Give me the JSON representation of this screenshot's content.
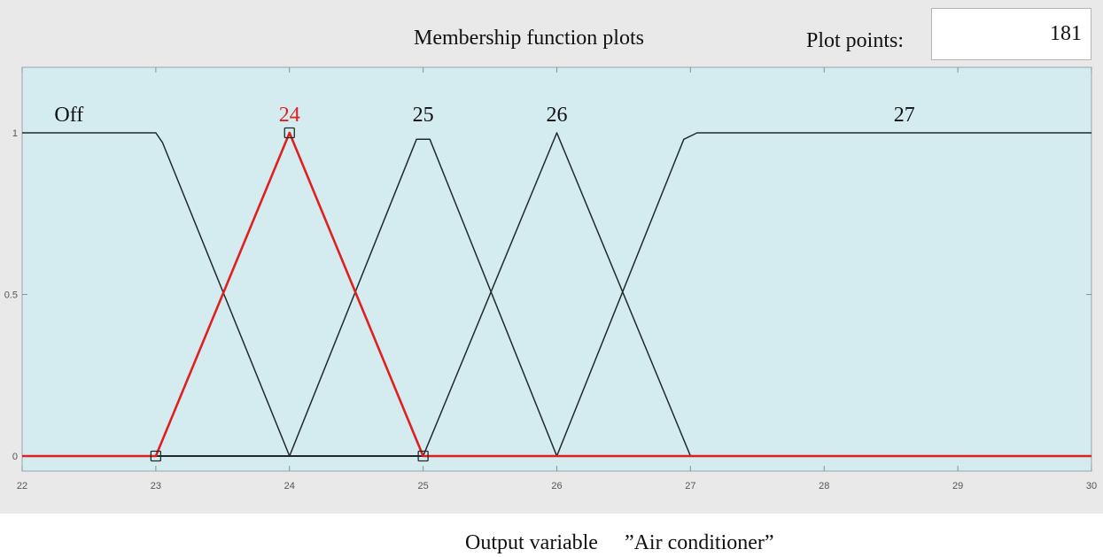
{
  "header": {
    "title": "Membership function plots",
    "plot_points_label": "Plot points:",
    "plot_points_value": "181"
  },
  "caption": "Output variable 　”Air conditioner”",
  "colors": {
    "plot_background": "#d4ebf0",
    "panel_background": "#e9e9e9",
    "line": "#1f2a2a",
    "selected_line": "#e02020",
    "baseline": "#7a0000"
  },
  "chart_data": {
    "type": "line",
    "xlim": [
      22,
      30
    ],
    "ylim": [
      0,
      1
    ],
    "xticks": [
      "22",
      "23",
      "24",
      "25",
      "26",
      "27",
      "28",
      "29",
      "30"
    ],
    "yticks": [
      "0",
      "0.5",
      "1"
    ],
    "grid": false,
    "selected_series": "24",
    "series": [
      {
        "name": "Off",
        "x": [
          22,
          23,
          23.05,
          24,
          30
        ],
        "y": [
          1,
          1,
          0.97,
          0,
          0
        ]
      },
      {
        "name": "24",
        "x": [
          22,
          23,
          24,
          25,
          30
        ],
        "y": [
          0,
          0,
          1,
          0,
          0
        ]
      },
      {
        "name": "25",
        "x": [
          22,
          24,
          24.95,
          25.05,
          26,
          30
        ],
        "y": [
          0,
          0,
          0.98,
          0.98,
          0,
          0
        ]
      },
      {
        "name": "26",
        "x": [
          22,
          25,
          26,
          27,
          30
        ],
        "y": [
          0,
          0,
          1,
          0,
          0
        ]
      },
      {
        "name": "27",
        "x": [
          22,
          26,
          26.95,
          27.05,
          30
        ],
        "y": [
          0,
          0,
          0.98,
          1,
          1
        ]
      }
    ],
    "labels": [
      {
        "text": "Off",
        "x": 22.35
      },
      {
        "text": "24",
        "x": 24
      },
      {
        "text": "25",
        "x": 25
      },
      {
        "text": "26",
        "x": 26
      },
      {
        "text": "27",
        "x": 28.6
      }
    ],
    "handles": [
      {
        "x": 23,
        "y": 0
      },
      {
        "x": 24,
        "y": 1
      },
      {
        "x": 25,
        "y": 0
      }
    ]
  }
}
